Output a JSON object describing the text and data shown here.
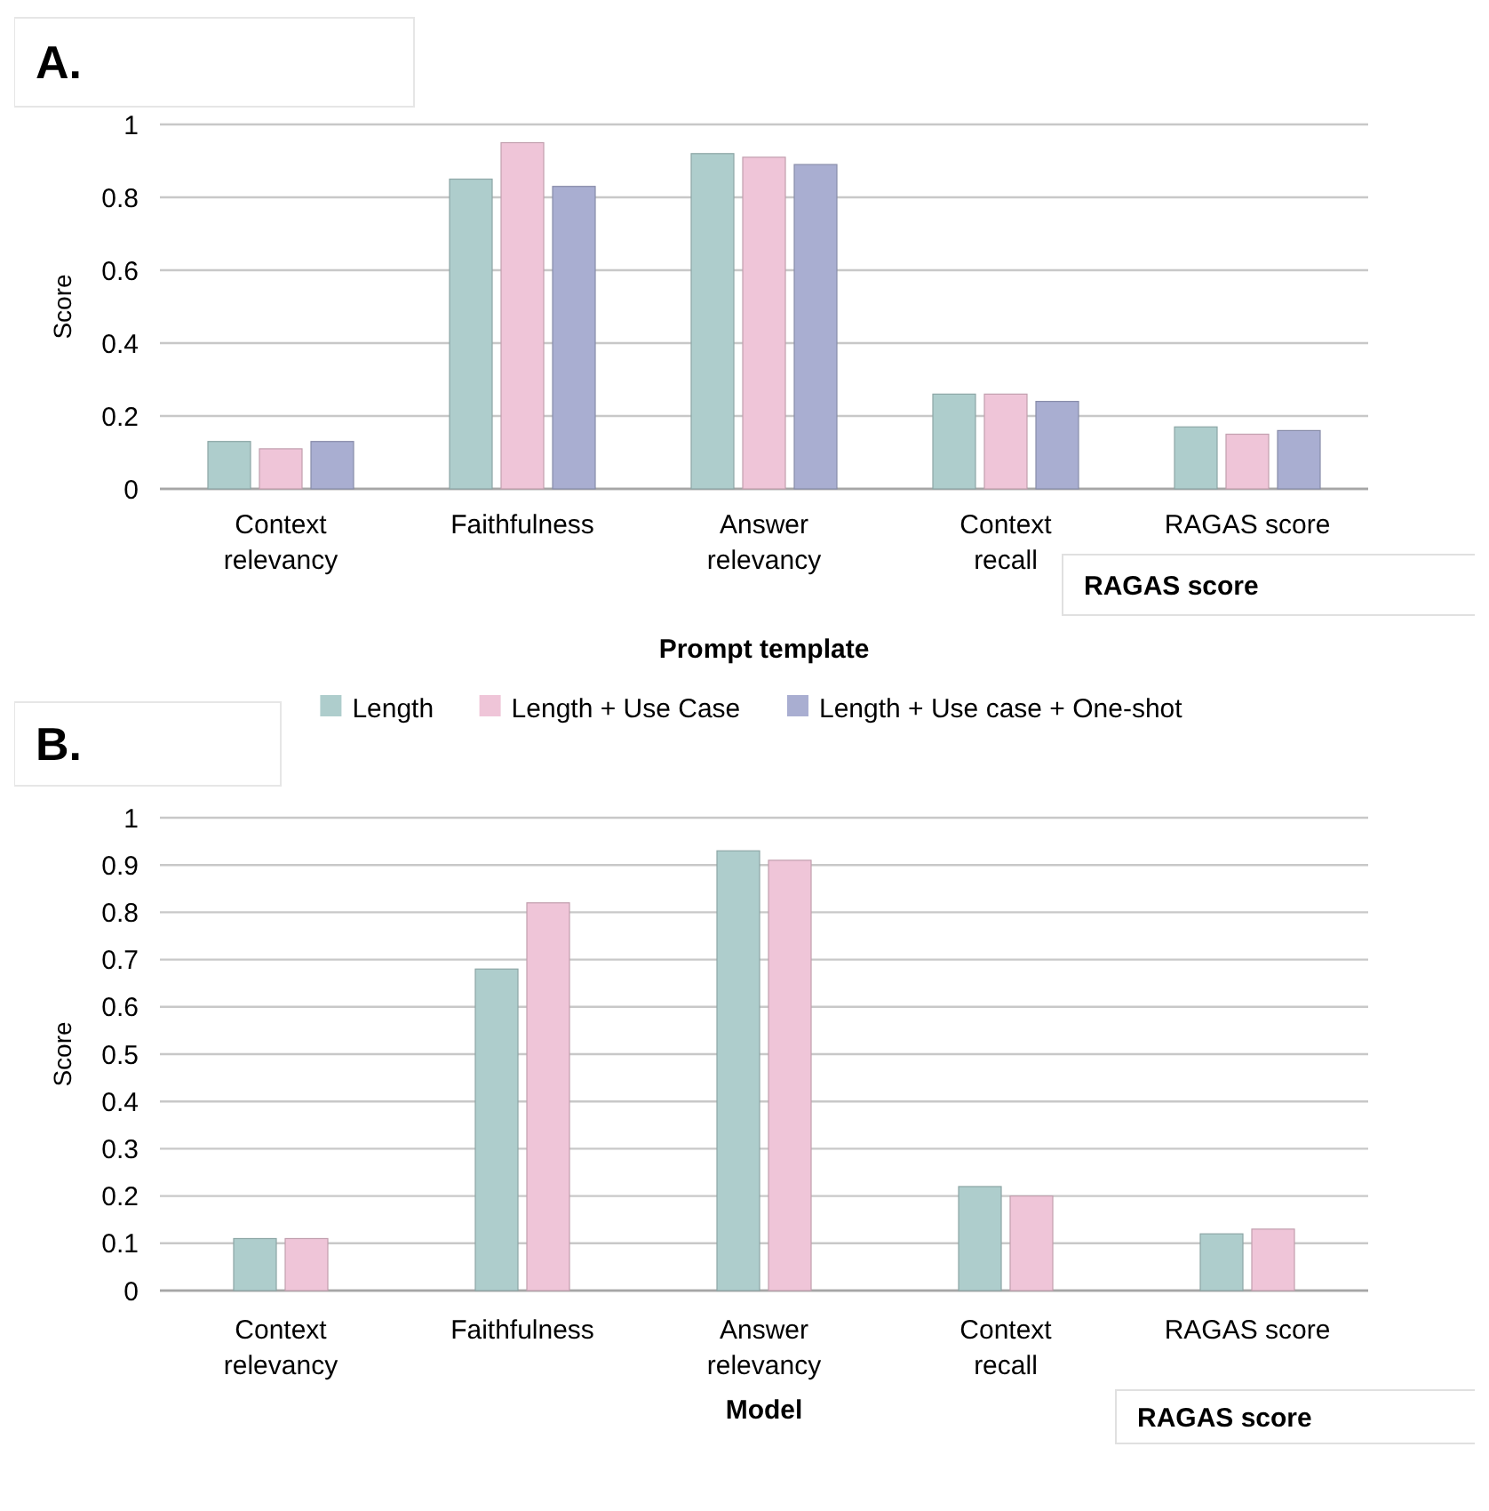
{
  "chart_data": [
    {
      "type": "bar",
      "title": "A.",
      "xlabel": "Prompt template",
      "ylabel": "Score",
      "categories": [
        "Context relevancy",
        "Faithfulness",
        "Answer relevancy",
        "Context recall",
        "RAGAS score"
      ],
      "series": [
        {
          "name": "Length",
          "color": "#aecdcc",
          "values": [
            0.13,
            0.85,
            0.92,
            0.26,
            0.17
          ]
        },
        {
          "name": "Length + Use Case",
          "color": "#efc5d8",
          "values": [
            0.11,
            0.95,
            0.91,
            0.26,
            0.15
          ]
        },
        {
          "name": "Length + Use case + One-shot",
          "color": "#a9aed1",
          "values": [
            0.13,
            0.83,
            0.89,
            0.24,
            0.16
          ]
        }
      ],
      "ylim": [
        0,
        1
      ],
      "yticks": [
        0,
        0.2,
        0.4,
        0.6,
        0.8,
        1
      ],
      "grid": "y",
      "legend": "bottom",
      "annotations": [
        "RAGAS score"
      ]
    },
    {
      "type": "bar",
      "title": "B.",
      "xlabel": "Model",
      "ylabel": "Score",
      "categories": [
        "Context relevancy",
        "Faithfulness",
        "Answer relevancy",
        "Context recall",
        "RAGAS score"
      ],
      "series": [
        {
          "color": "#aecdcc",
          "values": [
            0.11,
            0.68,
            0.93,
            0.22,
            0.12
          ]
        },
        {
          "color": "#efc5d8",
          "values": [
            0.11,
            0.82,
            0.91,
            0.2,
            0.13
          ]
        }
      ],
      "ylim": [
        0,
        1
      ],
      "yticks": [
        0,
        0.1,
        0.2,
        0.3,
        0.4,
        0.5,
        0.6,
        0.7,
        0.8,
        0.9,
        1
      ],
      "grid": "y",
      "annotations": [
        "RAGAS score"
      ]
    }
  ]
}
